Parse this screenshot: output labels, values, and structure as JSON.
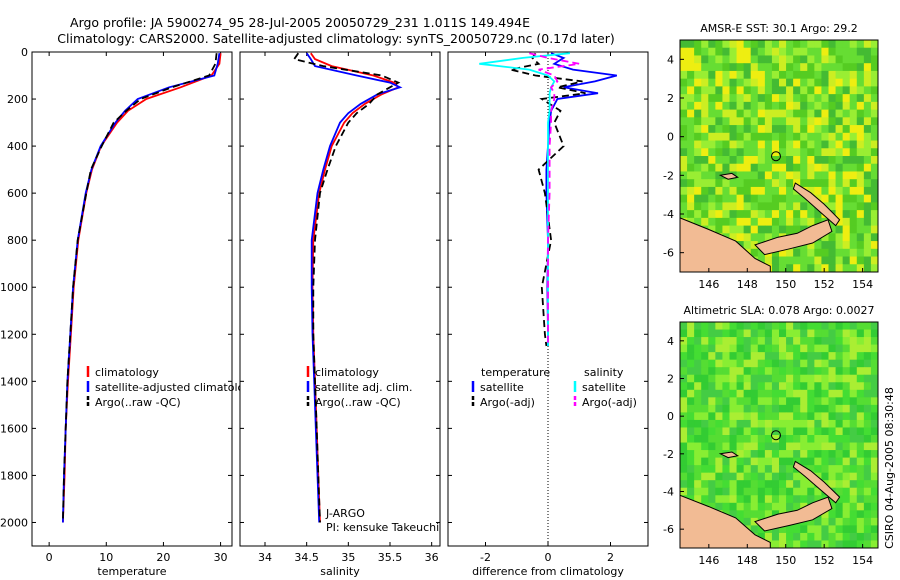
{
  "title": {
    "line1": "Argo profile: JA 5900274_95 28-Jul-2005 20050729_231 1.011S 149.494E",
    "line2": "Climatology: CARS2000. Satellite-adjusted climatology: synTS_20050729.nc (0.17d later)"
  },
  "side_label": "CSIRO 04-Aug-2005 08:30:48",
  "colors": {
    "climatology": "#ff0000",
    "satellite": "#0000ff",
    "argo": "#000000",
    "salinity_sat": "#00ffff",
    "salinity_argo": "#ff00ff",
    "land": "#f2bb94",
    "zero_line": "#000000"
  },
  "chart_data": [
    {
      "id": "temperature",
      "type": "line",
      "xlabel": "temperature",
      "ylabel": "",
      "xlim": [
        -3,
        32
      ],
      "ylim": [
        2100,
        0
      ],
      "xticks": [
        0,
        10,
        20,
        30
      ],
      "yticks": [
        0,
        200,
        400,
        600,
        800,
        1000,
        1200,
        1400,
        1600,
        1800,
        2000
      ],
      "depth": [
        5,
        50,
        100,
        150,
        200,
        250,
        300,
        400,
        500,
        600,
        800,
        1000,
        1200,
        1400,
        1600,
        1800,
        2000
      ],
      "series": [
        {
          "name": "climatology",
          "style": "solid",
          "values": [
            30.0,
            29.8,
            28.4,
            23.0,
            17.0,
            13.8,
            11.9,
            9.1,
            7.5,
            6.5,
            5.1,
            4.3,
            3.8,
            3.3,
            2.9,
            2.7,
            2.4
          ]
        },
        {
          "name": "satellite-adjusted climatology",
          "style": "solid",
          "values": [
            29.8,
            29.5,
            28.9,
            21.0,
            15.5,
            13.3,
            11.6,
            9.0,
            7.4,
            6.4,
            5.0,
            4.2,
            3.7,
            3.2,
            2.9,
            2.6,
            2.4
          ]
        },
        {
          "name": "Argo(..raw -QC)",
          "style": "dashed",
          "values": [
            29.3,
            29.1,
            28.0,
            21.5,
            16.0,
            13.5,
            11.3,
            9.2,
            7.3,
            6.5,
            5.0,
            4.2,
            3.7,
            3.2,
            2.9,
            2.6,
            2.4
          ]
        }
      ],
      "legend": [
        "climatology",
        "satellite-adjusted climatology",
        "Argo(..raw -QC)"
      ]
    },
    {
      "id": "salinity",
      "type": "line",
      "xlabel": "salinity",
      "xlim": [
        33.7,
        36.1
      ],
      "ylim": [
        2100,
        0
      ],
      "xticks": [
        34,
        34.5,
        35,
        35.5,
        36
      ],
      "depth": [
        5,
        30,
        60,
        100,
        130,
        150,
        180,
        220,
        260,
        300,
        400,
        500,
        600,
        800,
        1000,
        1200,
        1400,
        1600,
        1800,
        2000
      ],
      "series": [
        {
          "name": "climatology",
          "style": "solid",
          "values": [
            34.55,
            34.6,
            34.8,
            35.3,
            35.55,
            35.6,
            35.4,
            35.2,
            35.05,
            34.95,
            34.8,
            34.72,
            34.65,
            34.58,
            34.57,
            34.58,
            34.6,
            34.62,
            34.64,
            34.66
          ]
        },
        {
          "name": "satellite adj. clim.",
          "style": "solid",
          "values": [
            34.5,
            34.55,
            34.6,
            35.1,
            35.5,
            35.62,
            35.35,
            35.15,
            35.0,
            34.9,
            34.78,
            34.7,
            34.63,
            34.56,
            34.56,
            34.57,
            34.59,
            34.61,
            34.63,
            34.65
          ]
        },
        {
          "name": "Argo(..raw -QC)",
          "style": "dashed",
          "values": [
            34.4,
            34.35,
            34.7,
            35.4,
            35.6,
            35.5,
            35.35,
            35.25,
            35.1,
            35.0,
            34.85,
            34.75,
            34.66,
            34.6,
            34.58,
            34.58,
            34.6,
            34.62,
            34.64,
            34.66
          ]
        }
      ],
      "legend": [
        "climatology",
        "satellite adj. clim.",
        "Argo(..raw -QC)"
      ],
      "annotation": [
        "J-ARGO",
        "PI: kensuke Takeuchi"
      ]
    },
    {
      "id": "difference",
      "type": "line",
      "xlabel": "difference from climatology",
      "xlim": [
        -3.2,
        3.2
      ],
      "ylim": [
        2100,
        0
      ],
      "xticks": [
        -2,
        0,
        2
      ],
      "depth": [
        5,
        25,
        50,
        75,
        100,
        125,
        150,
        175,
        200,
        250,
        300,
        400,
        500,
        600,
        800,
        1000,
        1200,
        1250
      ],
      "series": [
        {
          "name": "temperature satellite",
          "style": "solid",
          "color_key": "satellite",
          "values": [
            0.1,
            0.5,
            0.2,
            0.8,
            2.2,
            1.5,
            0.5,
            1.6,
            0.3,
            0.1,
            0.05,
            0.0,
            -0.05,
            -0.05,
            0.0,
            -0.02,
            0.0,
            0.0
          ]
        },
        {
          "name": "temperature Argo(-adj)",
          "style": "dashed",
          "color_key": "argo",
          "values": [
            -0.4,
            -0.5,
            -0.3,
            -1.2,
            -0.4,
            1.1,
            0.3,
            1.2,
            -0.2,
            0.4,
            0.2,
            0.5,
            -0.3,
            -0.1,
            0.1,
            -0.2,
            -0.1,
            -0.05
          ]
        },
        {
          "name": "salinity satellite",
          "style": "solid",
          "color_key": "salinity_sat",
          "values": [
            0.7,
            -0.8,
            -2.2,
            -0.6,
            0.0,
            0.2,
            0.1,
            0.05,
            0.05,
            0.05,
            0.0,
            0.0,
            0.0,
            0.0,
            0.0,
            0.0,
            0.0,
            0.0
          ]
        },
        {
          "name": "salinity Argo(-adj)",
          "style": "dashed",
          "color_key": "salinity_argo",
          "values": [
            -0.6,
            0.0,
            1.0,
            -0.3,
            0.2,
            0.3,
            0.1,
            0.2,
            0.2,
            0.1,
            0.1,
            0.05,
            0.05,
            0.05,
            0.0,
            0.0,
            0.0,
            0.0
          ]
        }
      ],
      "legend_left": [
        "temperature",
        "satellite",
        "Argo(-adj)"
      ],
      "legend_right": [
        "salinity",
        "satellite",
        "Argo(-adj)"
      ]
    },
    {
      "id": "sst-map",
      "type": "heatmap",
      "title": "AMSR-E SST: 30.1 Argo: 29.2",
      "xlim": [
        144.5,
        154.8
      ],
      "ylim": [
        -7,
        5
      ],
      "xticks": [
        146,
        148,
        150,
        152,
        154
      ],
      "yticks": [
        -6,
        -4,
        -2,
        0,
        2,
        4
      ],
      "argo_position": [
        149.494,
        -1.011
      ]
    },
    {
      "id": "sla-map",
      "type": "heatmap",
      "title": "Altimetric SLA: 0.078 Argo: 0.0027",
      "xlim": [
        144.5,
        154.8
      ],
      "ylim": [
        -7,
        5
      ],
      "xticks": [
        146,
        148,
        150,
        152,
        154
      ],
      "yticks": [
        -6,
        -4,
        -2,
        0,
        2,
        4
      ],
      "argo_position": [
        149.494,
        -1.011
      ]
    }
  ]
}
